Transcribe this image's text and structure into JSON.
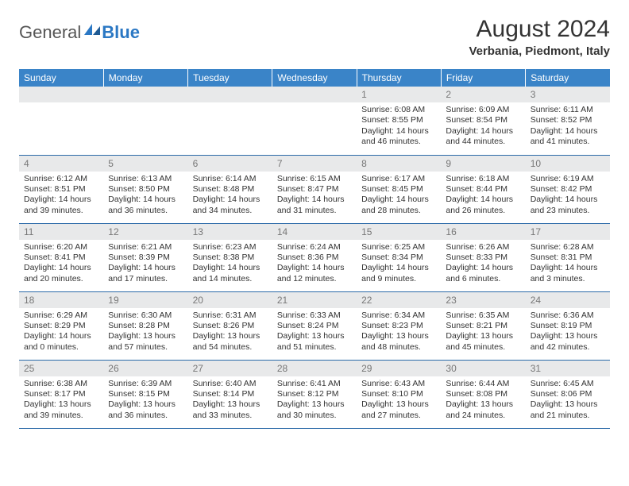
{
  "logo": {
    "part1": "General",
    "part2": "Blue"
  },
  "title": "August 2024",
  "subtitle": "Verbania, Piedmont, Italy",
  "colors": {
    "header_bg": "#3a84c8",
    "header_text": "#ffffff",
    "daynum_bg": "#e8e9ea",
    "daynum_text": "#777777",
    "body_text": "#333333",
    "row_border": "#2b6aa8",
    "logo_blue": "#2b78c4"
  },
  "weekdays": [
    "Sunday",
    "Monday",
    "Tuesday",
    "Wednesday",
    "Thursday",
    "Friday",
    "Saturday"
  ],
  "rows": [
    [
      null,
      null,
      null,
      null,
      {
        "n": "1",
        "sr": "6:08 AM",
        "ss": "8:55 PM",
        "dl": "Daylight: 14 hours and 46 minutes."
      },
      {
        "n": "2",
        "sr": "6:09 AM",
        "ss": "8:54 PM",
        "dl": "Daylight: 14 hours and 44 minutes."
      },
      {
        "n": "3",
        "sr": "6:11 AM",
        "ss": "8:52 PM",
        "dl": "Daylight: 14 hours and 41 minutes."
      }
    ],
    [
      {
        "n": "4",
        "sr": "6:12 AM",
        "ss": "8:51 PM",
        "dl": "Daylight: 14 hours and 39 minutes."
      },
      {
        "n": "5",
        "sr": "6:13 AM",
        "ss": "8:50 PM",
        "dl": "Daylight: 14 hours and 36 minutes."
      },
      {
        "n": "6",
        "sr": "6:14 AM",
        "ss": "8:48 PM",
        "dl": "Daylight: 14 hours and 34 minutes."
      },
      {
        "n": "7",
        "sr": "6:15 AM",
        "ss": "8:47 PM",
        "dl": "Daylight: 14 hours and 31 minutes."
      },
      {
        "n": "8",
        "sr": "6:17 AM",
        "ss": "8:45 PM",
        "dl": "Daylight: 14 hours and 28 minutes."
      },
      {
        "n": "9",
        "sr": "6:18 AM",
        "ss": "8:44 PM",
        "dl": "Daylight: 14 hours and 26 minutes."
      },
      {
        "n": "10",
        "sr": "6:19 AM",
        "ss": "8:42 PM",
        "dl": "Daylight: 14 hours and 23 minutes."
      }
    ],
    [
      {
        "n": "11",
        "sr": "6:20 AM",
        "ss": "8:41 PM",
        "dl": "Daylight: 14 hours and 20 minutes."
      },
      {
        "n": "12",
        "sr": "6:21 AM",
        "ss": "8:39 PM",
        "dl": "Daylight: 14 hours and 17 minutes."
      },
      {
        "n": "13",
        "sr": "6:23 AM",
        "ss": "8:38 PM",
        "dl": "Daylight: 14 hours and 14 minutes."
      },
      {
        "n": "14",
        "sr": "6:24 AM",
        "ss": "8:36 PM",
        "dl": "Daylight: 14 hours and 12 minutes."
      },
      {
        "n": "15",
        "sr": "6:25 AM",
        "ss": "8:34 PM",
        "dl": "Daylight: 14 hours and 9 minutes."
      },
      {
        "n": "16",
        "sr": "6:26 AM",
        "ss": "8:33 PM",
        "dl": "Daylight: 14 hours and 6 minutes."
      },
      {
        "n": "17",
        "sr": "6:28 AM",
        "ss": "8:31 PM",
        "dl": "Daylight: 14 hours and 3 minutes."
      }
    ],
    [
      {
        "n": "18",
        "sr": "6:29 AM",
        "ss": "8:29 PM",
        "dl": "Daylight: 14 hours and 0 minutes."
      },
      {
        "n": "19",
        "sr": "6:30 AM",
        "ss": "8:28 PM",
        "dl": "Daylight: 13 hours and 57 minutes."
      },
      {
        "n": "20",
        "sr": "6:31 AM",
        "ss": "8:26 PM",
        "dl": "Daylight: 13 hours and 54 minutes."
      },
      {
        "n": "21",
        "sr": "6:33 AM",
        "ss": "8:24 PM",
        "dl": "Daylight: 13 hours and 51 minutes."
      },
      {
        "n": "22",
        "sr": "6:34 AM",
        "ss": "8:23 PM",
        "dl": "Daylight: 13 hours and 48 minutes."
      },
      {
        "n": "23",
        "sr": "6:35 AM",
        "ss": "8:21 PM",
        "dl": "Daylight: 13 hours and 45 minutes."
      },
      {
        "n": "24",
        "sr": "6:36 AM",
        "ss": "8:19 PM",
        "dl": "Daylight: 13 hours and 42 minutes."
      }
    ],
    [
      {
        "n": "25",
        "sr": "6:38 AM",
        "ss": "8:17 PM",
        "dl": "Daylight: 13 hours and 39 minutes."
      },
      {
        "n": "26",
        "sr": "6:39 AM",
        "ss": "8:15 PM",
        "dl": "Daylight: 13 hours and 36 minutes."
      },
      {
        "n": "27",
        "sr": "6:40 AM",
        "ss": "8:14 PM",
        "dl": "Daylight: 13 hours and 33 minutes."
      },
      {
        "n": "28",
        "sr": "6:41 AM",
        "ss": "8:12 PM",
        "dl": "Daylight: 13 hours and 30 minutes."
      },
      {
        "n": "29",
        "sr": "6:43 AM",
        "ss": "8:10 PM",
        "dl": "Daylight: 13 hours and 27 minutes."
      },
      {
        "n": "30",
        "sr": "6:44 AM",
        "ss": "8:08 PM",
        "dl": "Daylight: 13 hours and 24 minutes."
      },
      {
        "n": "31",
        "sr": "6:45 AM",
        "ss": "8:06 PM",
        "dl": "Daylight: 13 hours and 21 minutes."
      }
    ]
  ],
  "labels": {
    "sunrise": "Sunrise: ",
    "sunset": "Sunset: "
  }
}
